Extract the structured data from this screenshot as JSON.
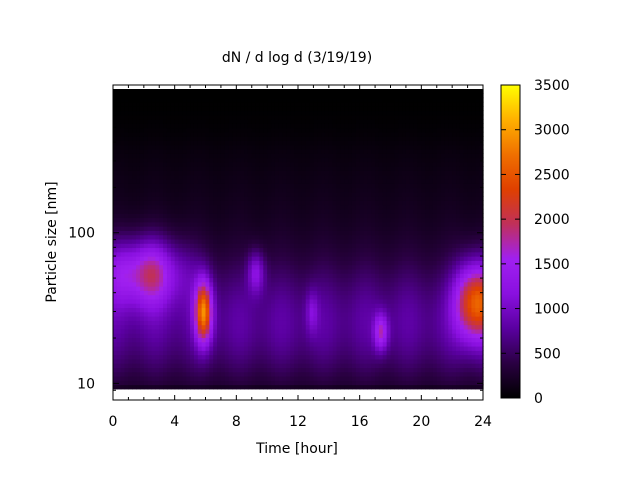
{
  "chart_data": {
    "type": "heatmap",
    "title": "dN / d log d (3/19/19)",
    "xlabel": "Time [hour]",
    "ylabel": "Particle size [nm]",
    "xlim": [
      0,
      24
    ],
    "x_ticks": [
      0,
      4,
      8,
      12,
      16,
      20,
      24
    ],
    "y_scale": "log",
    "ylim": [
      8.5,
      900
    ],
    "y_ticks": [
      10,
      100
    ],
    "colorbar": {
      "range": [
        0,
        3500
      ],
      "ticks": [
        0,
        500,
        1000,
        1500,
        2000,
        2500,
        3000,
        3500
      ],
      "palette": [
        "#000000",
        "#2a0042",
        "#5a00a0",
        "#8a10e0",
        "#a020f0",
        "#c0305a",
        "#e04000",
        "#f07000",
        "#ffb000",
        "#ffff00"
      ]
    },
    "background_level": 800,
    "blobs": [
      {
        "t": 2.0,
        "size_nm": 55,
        "peak": 1500,
        "t_width": 2.6,
        "log_width": 0.22
      },
      {
        "t": 5.9,
        "size_nm": 30,
        "peak": 2200,
        "t_width": 0.55,
        "log_width": 0.2
      },
      {
        "t": 9.3,
        "size_nm": 55,
        "peak": 900,
        "t_width": 0.55,
        "log_width": 0.14
      },
      {
        "t": 12.9,
        "size_nm": 30,
        "peak": 500,
        "t_width": 0.4,
        "log_width": 0.14
      },
      {
        "t": 17.4,
        "size_nm": 22,
        "peak": 1200,
        "t_width": 0.45,
        "log_width": 0.12
      },
      {
        "t": 23.5,
        "size_nm": 35,
        "peak": 2300,
        "t_width": 1.2,
        "log_width": 0.25
      }
    ],
    "grid": false,
    "legend": "none"
  }
}
